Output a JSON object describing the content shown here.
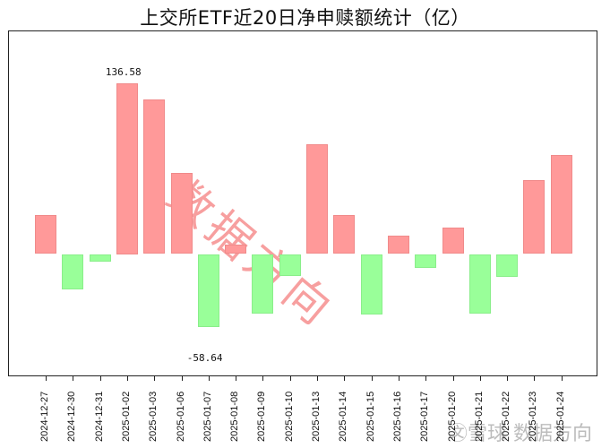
{
  "title": "上交所ETF近20日净申赎额统计（亿）",
  "watermark": "数据方向",
  "footer_watermark": "㉆雪球 数据方向",
  "colors": {
    "positive": "#ff9999",
    "negative": "#99ff99"
  },
  "max_label": "136.58",
  "min_label": "-58.64",
  "chart_data": {
    "type": "bar",
    "title": "上交所ETF近20日净申赎额统计（亿）",
    "xlabel": "",
    "ylabel": "",
    "categories": [
      "2024-12-27",
      "2024-12-30",
      "2024-12-31",
      "2025-01-02",
      "2025-01-03",
      "2025-01-06",
      "2025-01-07",
      "2025-01-08",
      "2025-01-09",
      "2025-01-10",
      "2025-01-13",
      "2025-01-14",
      "2025-01-15",
      "2025-01-16",
      "2025-01-17",
      "2025-01-20",
      "2025-01-21",
      "2025-01-22",
      "2025-01-23",
      "2025-01-24"
    ],
    "values": [
      31.2,
      -28.3,
      -6.1,
      136.58,
      123.7,
      64.9,
      -58.64,
      7.5,
      -47.7,
      -17.6,
      87.8,
      31.2,
      -48.4,
      14.7,
      -11.1,
      21.1,
      -47.7,
      -18.3,
      59.2,
      79.3
    ],
    "annotations": [
      {
        "category": "2025-01-02",
        "text": "136.58"
      },
      {
        "category": "2025-01-07",
        "text": "-58.64"
      }
    ],
    "ylim": [
      -195,
      170
    ],
    "grid": false,
    "yaxis_ticks_visible": false,
    "legend": null
  }
}
